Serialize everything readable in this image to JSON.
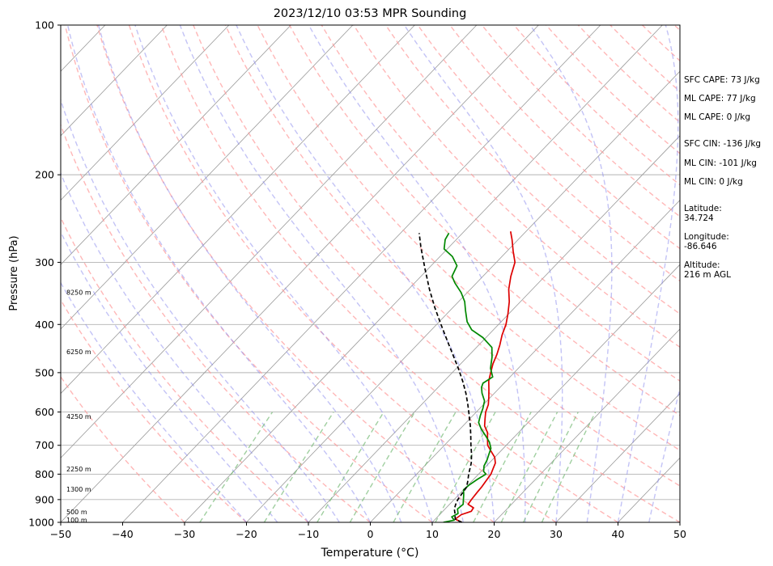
{
  "chart_data": {
    "type": "line",
    "title": "2023/12/10 03:53 MPR Sounding",
    "xlabel": "Temperature (°C)",
    "ylabel": "Pressure (hPa)",
    "xlim": [
      -50,
      50
    ],
    "ylim": [
      1000,
      100
    ],
    "y_scale": "log",
    "x_ticks": [
      "−50",
      "−40",
      "−30",
      "−20",
      "−10",
      "0",
      "10",
      "20",
      "30",
      "40",
      "50"
    ],
    "y_ticks": [
      {
        "p": 100,
        "label": "100"
      },
      {
        "p": 200,
        "label": "200"
      },
      {
        "p": 300,
        "label": "300"
      },
      {
        "p": 400,
        "label": "400"
      },
      {
        "p": 500,
        "label": "500"
      },
      {
        "p": 600,
        "label": "600"
      },
      {
        "p": 700,
        "label": "700"
      },
      {
        "p": 800,
        "label": "800"
      },
      {
        "p": 900,
        "label": "900"
      },
      {
        "p": 1000,
        "label": "1000"
      }
    ],
    "height_labels": [
      {
        "p": 990,
        "label": "100 m"
      },
      {
        "p": 955,
        "label": "500 m"
      },
      {
        "p": 860,
        "label": "1300 m"
      },
      {
        "p": 782,
        "label": "2250 m"
      },
      {
        "p": 613,
        "label": "4250 m"
      },
      {
        "p": 455,
        "label": "6250 m"
      },
      {
        "p": 345,
        "label": "8250 m"
      }
    ],
    "series": [
      {
        "color": "#dd0000",
        "points": [
          [
            1000,
            14.8
          ],
          [
            985,
            13.2
          ],
          [
            965,
            13.5
          ],
          [
            950,
            14.6
          ],
          [
            935,
            14.4
          ],
          [
            920,
            13.0
          ],
          [
            900,
            12.8
          ],
          [
            870,
            12.6
          ],
          [
            850,
            12.5
          ],
          [
            820,
            12.2
          ],
          [
            800,
            12.0
          ],
          [
            780,
            11.5
          ],
          [
            760,
            11.0
          ],
          [
            740,
            10.0
          ],
          [
            720,
            8.5
          ],
          [
            700,
            7.0
          ],
          [
            680,
            6.0
          ],
          [
            660,
            5.0
          ],
          [
            640,
            3.5
          ],
          [
            620,
            2.5
          ],
          [
            600,
            1.5
          ],
          [
            580,
            0.8
          ],
          [
            560,
            -0.3
          ],
          [
            540,
            -1.5
          ],
          [
            520,
            -2.8
          ],
          [
            500,
            -3.8
          ],
          [
            480,
            -4.8
          ],
          [
            460,
            -5.6
          ],
          [
            440,
            -6.6
          ],
          [
            420,
            -7.8
          ],
          [
            400,
            -8.8
          ],
          [
            380,
            -10.2
          ],
          [
            360,
            -11.8
          ],
          [
            340,
            -13.8
          ],
          [
            320,
            -15.5
          ],
          [
            300,
            -17.0
          ],
          [
            285,
            -19.0
          ],
          [
            270,
            -21.0
          ],
          [
            260,
            -22.5
          ]
        ]
      },
      {
        "color": "#008800",
        "points": [
          [
            1000,
            11.8
          ],
          [
            990,
            13.2
          ],
          [
            975,
            12.3
          ],
          [
            960,
            12.8
          ],
          [
            940,
            12.0
          ],
          [
            920,
            12.2
          ],
          [
            900,
            11.5
          ],
          [
            880,
            10.8
          ],
          [
            860,
            10.0
          ],
          [
            840,
            10.2
          ],
          [
            820,
            10.6
          ],
          [
            800,
            11.2
          ],
          [
            790,
            10.4
          ],
          [
            770,
            9.6
          ],
          [
            750,
            9.2
          ],
          [
            730,
            8.6
          ],
          [
            710,
            8.0
          ],
          [
            690,
            6.8
          ],
          [
            670,
            5.2
          ],
          [
            650,
            3.5
          ],
          [
            630,
            2.0
          ],
          [
            610,
            1.2
          ],
          [
            590,
            0.5
          ],
          [
            570,
            -0.4
          ],
          [
            550,
            -2.0
          ],
          [
            535,
            -3.0
          ],
          [
            525,
            -3.4
          ],
          [
            510,
            -2.8
          ],
          [
            490,
            -4.5
          ],
          [
            465,
            -6.0
          ],
          [
            445,
            -7.5
          ],
          [
            425,
            -10.5
          ],
          [
            410,
            -13.5
          ],
          [
            395,
            -15.5
          ],
          [
            375,
            -17.5
          ],
          [
            360,
            -19.0
          ],
          [
            345,
            -21.0
          ],
          [
            330,
            -23.5
          ],
          [
            320,
            -25.0
          ],
          [
            305,
            -25.8
          ],
          [
            292,
            -28.0
          ],
          [
            282,
            -30.5
          ],
          [
            270,
            -31.8
          ],
          [
            262,
            -32.2
          ]
        ]
      },
      {
        "color": "#000000",
        "dashed": true,
        "points": [
          [
            1000,
            14.8
          ],
          [
            985,
            13.2
          ],
          [
            960,
            12.3
          ],
          [
            940,
            11.5
          ],
          [
            920,
            11.0
          ],
          [
            900,
            10.6
          ],
          [
            880,
            10.4
          ],
          [
            850,
            10.1
          ],
          [
            825,
            9.3
          ],
          [
            800,
            8.4
          ],
          [
            760,
            7.1
          ],
          [
            730,
            5.8
          ],
          [
            700,
            4.3
          ],
          [
            670,
            2.8
          ],
          [
            640,
            1.2
          ],
          [
            610,
            -0.6
          ],
          [
            580,
            -2.5
          ],
          [
            550,
            -4.6
          ],
          [
            520,
            -7.0
          ],
          [
            490,
            -9.7
          ],
          [
            460,
            -12.7
          ],
          [
            430,
            -15.9
          ],
          [
            400,
            -19.3
          ],
          [
            370,
            -22.9
          ],
          [
            340,
            -26.6
          ],
          [
            310,
            -30.4
          ],
          [
            280,
            -34.5
          ],
          [
            262,
            -37.0
          ]
        ]
      }
    ],
    "annotations": [
      "SFC CAPE: 73 J/kg",
      "ML CAPE: 77 J/kg",
      "ML CAPE: 0 J/kg",
      "SFC CIN: -136 J/kg",
      "ML CIN: -101 J/kg",
      "ML CIN: 0 J/kg",
      "Latitude:\n34.724",
      "Longitude:\n-86.646",
      "Altitude:\n216 m AGL"
    ],
    "colors": {
      "temperature": "#dd0000",
      "dewpoint": "#008800",
      "parcel": "#000000",
      "dry_adiabat": "#ff9999",
      "moist_adiabat": "#8888ee",
      "mixing_ratio": "#77bb77",
      "isotherm": "#999999"
    },
    "grid": true
  }
}
